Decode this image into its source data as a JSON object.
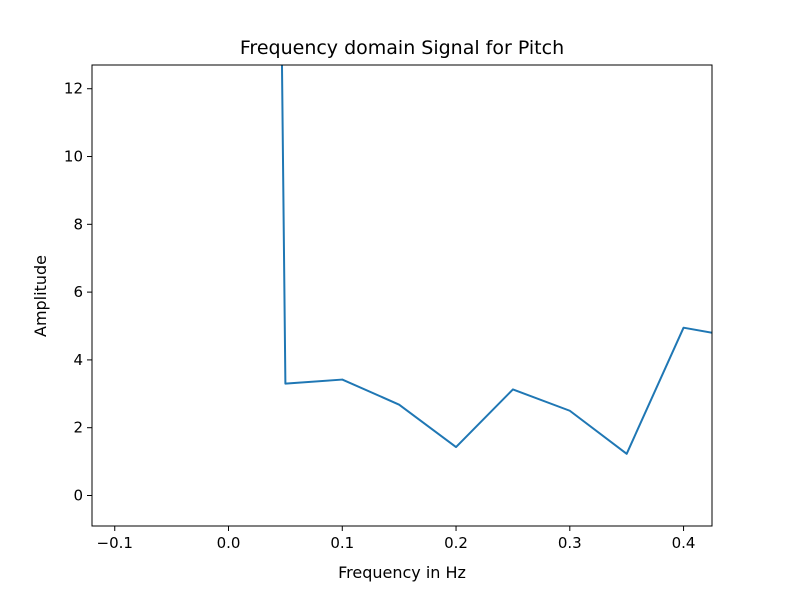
{
  "chart_data": {
    "type": "line",
    "title": "Frequency domain Signal for Pitch",
    "xlabel": "Frequency in Hz",
    "ylabel": "Amplitude",
    "xlim": [
      -0.12,
      0.425
    ],
    "ylim": [
      -0.9,
      12.7
    ],
    "grid": false,
    "xticks": [
      -0.1,
      0.0,
      0.1,
      0.2,
      0.3,
      0.4
    ],
    "xtick_labels": [
      "−0.1",
      "0.0",
      "0.1",
      "0.2",
      "0.3",
      "0.4"
    ],
    "yticks": [
      0,
      2,
      4,
      6,
      8,
      10,
      12
    ],
    "ytick_labels": [
      "0",
      "2",
      "4",
      "6",
      "8",
      "10",
      "12"
    ],
    "series": [
      {
        "color": "#1f77b4",
        "x": [
          0.047,
          0.05,
          0.1,
          0.15,
          0.2,
          0.25,
          0.3,
          0.35,
          0.4,
          0.45
        ],
        "y": [
          12.7,
          3.3,
          3.42,
          2.68,
          1.43,
          3.13,
          2.5,
          1.23,
          4.95,
          4.65
        ]
      }
    ]
  }
}
